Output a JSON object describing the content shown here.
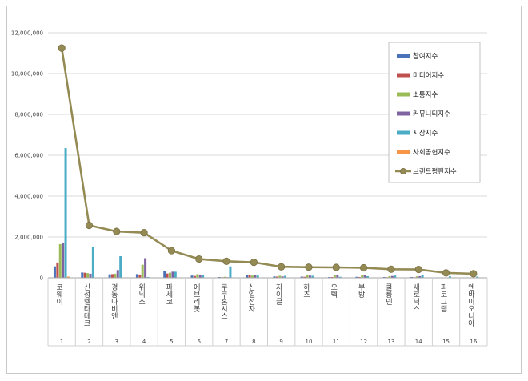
{
  "chart_data": {
    "type": "bar",
    "title": "",
    "xlabel": "",
    "ylabel": "",
    "ylim": [
      0,
      12000000
    ],
    "yticks": [
      0,
      2000000,
      4000000,
      6000000,
      8000000,
      10000000,
      12000000
    ],
    "ytick_labels": [
      "0",
      "2,000,000",
      "4,000,000",
      "6,000,000",
      "8,000,000",
      "10,000,000",
      "12,000,000"
    ],
    "grid": true,
    "legend_position": "top-right",
    "categories": [
      "코웨이",
      "신성델타테크",
      "경동나비엔",
      "위닉스",
      "파세코",
      "에브리봇",
      "쿠쿠홈시스",
      "신일전자",
      "자이글",
      "하츠",
      "오텍",
      "부방",
      "쿨룽덴",
      "새로닉스",
      "피코그램",
      "엔바이오니아"
    ],
    "category_numbers": [
      "1",
      "2",
      "3",
      "4",
      "5",
      "6",
      "7",
      "8",
      "9",
      "10",
      "11",
      "12",
      "13",
      "14",
      "15",
      "16"
    ],
    "series": [
      {
        "name": "참여지수",
        "kind": "bar",
        "color": "#4a72b8",
        "values": [
          560000,
          260000,
          170000,
          180000,
          350000,
          110000,
          40000,
          150000,
          70000,
          60000,
          40000,
          50000,
          40000,
          40000,
          20000,
          20000
        ]
      },
      {
        "name": "미디어지수",
        "kind": "bar",
        "color": "#c0504d",
        "values": [
          750000,
          250000,
          180000,
          160000,
          210000,
          90000,
          30000,
          130000,
          60000,
          50000,
          40000,
          40000,
          30000,
          30000,
          20000,
          20000
        ]
      },
      {
        "name": "소통지수",
        "kind": "bar",
        "color": "#9bbb59",
        "values": [
          1650000,
          230000,
          200000,
          640000,
          250000,
          180000,
          50000,
          110000,
          100000,
          120000,
          150000,
          120000,
          80000,
          70000,
          20000,
          20000
        ]
      },
      {
        "name": "커뮤니티지수",
        "kind": "bar",
        "color": "#8064a2",
        "values": [
          1700000,
          200000,
          380000,
          960000,
          300000,
          160000,
          30000,
          120000,
          70000,
          110000,
          150000,
          140000,
          90000,
          80000,
          20000,
          20000
        ]
      },
      {
        "name": "시장지수",
        "kind": "bar",
        "color": "#4bacc6",
        "values": [
          6350000,
          1520000,
          1060000,
          40000,
          300000,
          120000,
          560000,
          110000,
          100000,
          100000,
          50000,
          80000,
          110000,
          120000,
          70000,
          60000
        ]
      },
      {
        "name": "사회공헌지수",
        "kind": "bar",
        "color": "#f79646",
        "values": [
          60000,
          20000,
          20000,
          20000,
          20000,
          20000,
          20000,
          20000,
          20000,
          20000,
          20000,
          20000,
          20000,
          20000,
          20000,
          20000
        ]
      },
      {
        "name": "브랜드평판지수",
        "kind": "line",
        "color": "#948a54",
        "values": [
          11250000,
          2570000,
          2270000,
          2210000,
          1330000,
          920000,
          810000,
          760000,
          540000,
          520000,
          510000,
          490000,
          420000,
          410000,
          240000,
          200000
        ]
      }
    ]
  }
}
